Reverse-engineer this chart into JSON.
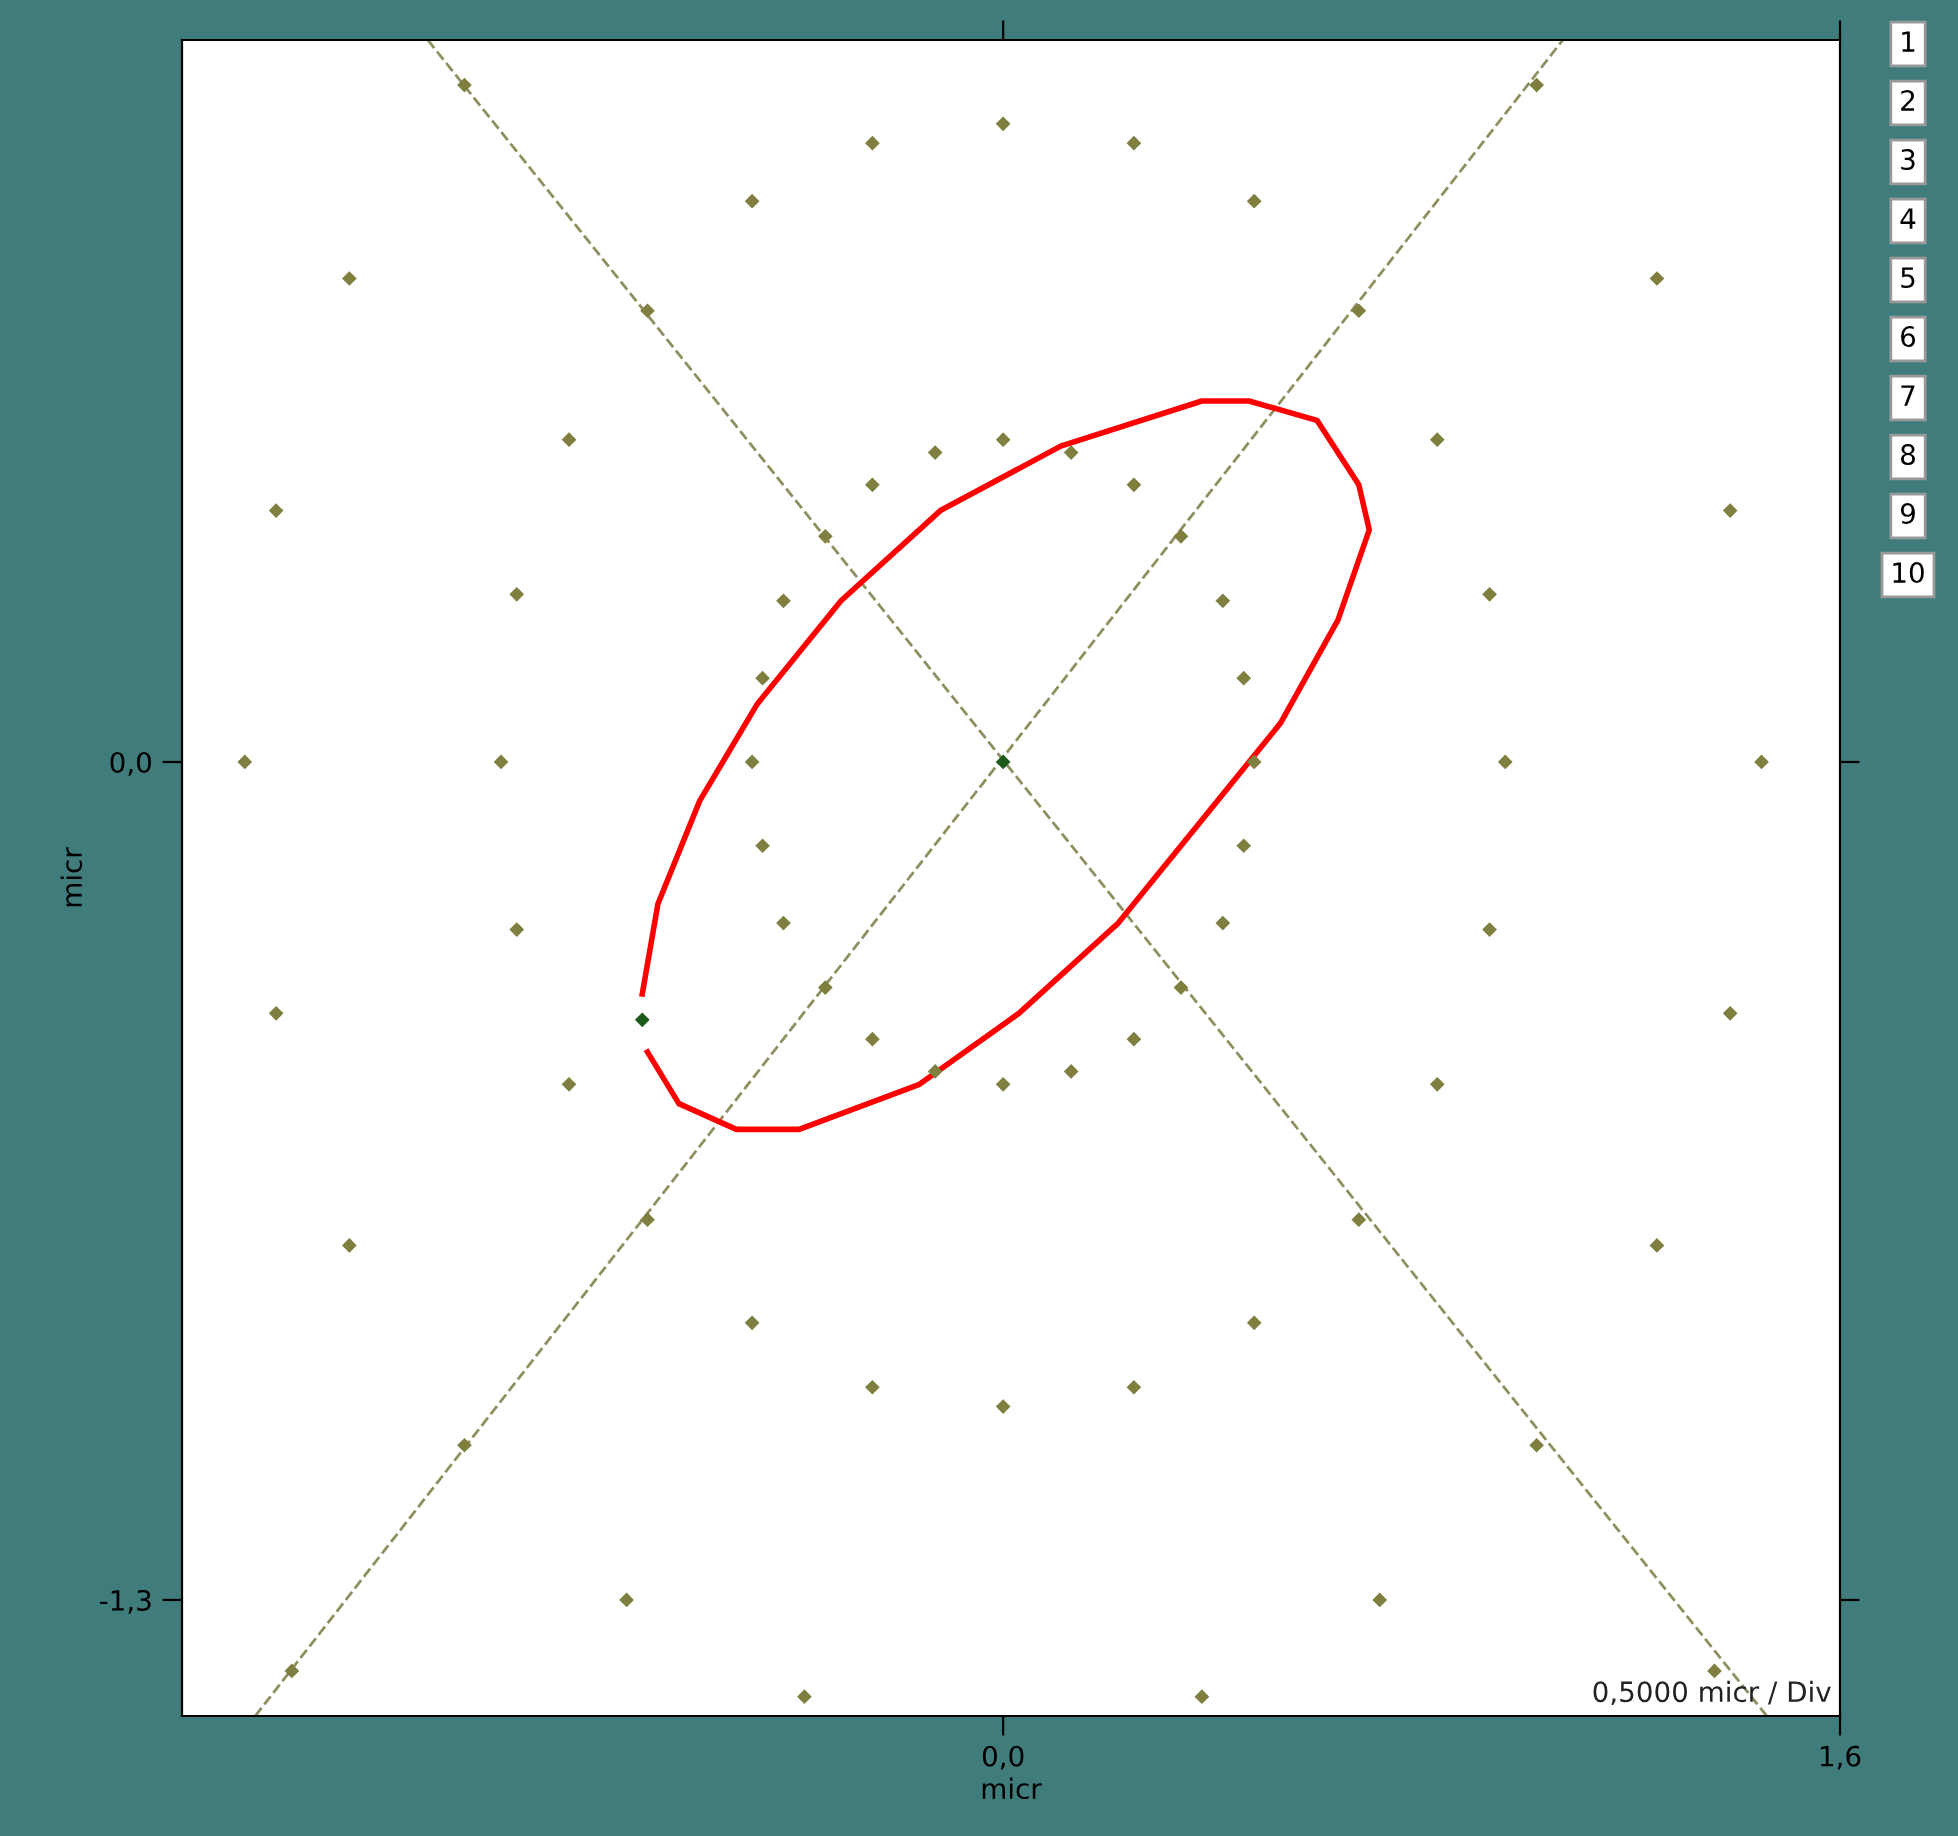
{
  "chart_data": {
    "type": "scatter",
    "xlabel": "micr",
    "ylabel": "micr",
    "xlim": [
      -1.57,
      1.6
    ],
    "ylim": [
      -1.48,
      1.12
    ],
    "xticks": [
      {
        "value": 0,
        "label": "0,0"
      },
      {
        "value": 1.6,
        "label": "1,6"
      }
    ],
    "yticks": [
      {
        "value": 0,
        "label": "0,0"
      },
      {
        "value": -1.3,
        "label": "-1,3"
      }
    ],
    "grid": false,
    "legend": false,
    "annotations": [
      "0,5000 micr / Div",
      "1",
      "2",
      "3",
      "4",
      "5",
      "6",
      "7",
      "8",
      "9",
      "10"
    ],
    "series": [
      {
        "color": "#7f7f3f",
        "marker": "diamond",
        "x": [
          -1.03,
          -0.25,
          0,
          0.25,
          1.02,
          -0.48,
          0.48,
          -1.25,
          -0.68,
          0.68,
          1.25,
          -0.83,
          -0.25,
          -0.13,
          0,
          0.13,
          0.25,
          0.83,
          -1.39,
          -0.34,
          0.34,
          1.39,
          -0.93,
          -0.42,
          0.42,
          0.93,
          -0.46,
          0.46,
          -1.45,
          -0.96,
          -0.48,
          0.48,
          0.96,
          1.45,
          -0.46,
          0.46,
          -0.93,
          -0.42,
          0.42,
          0.93,
          -1.39,
          -0.34,
          0.34,
          1.39,
          -0.83,
          -0.25,
          -0.13,
          0,
          0.13,
          0.25,
          0.83,
          -1.25,
          -0.68,
          0.68,
          1.25,
          -0.48,
          0.48,
          -1.03,
          -0.25,
          0,
          0.25,
          1.02,
          -0.72,
          0.72,
          -1.36,
          -0.38,
          0.38,
          1.36
        ],
        "values": [
          1.05,
          0.96,
          0.99,
          0.96,
          1.05,
          0.87,
          0.87,
          0.75,
          0.7,
          0.7,
          0.75,
          0.5,
          0.43,
          0.48,
          0.5,
          0.48,
          0.43,
          0.5,
          0.39,
          0.35,
          0.35,
          0.39,
          0.26,
          0.25,
          0.25,
          0.26,
          0.13,
          0.13,
          0,
          0,
          0,
          0,
          0,
          0,
          -0.13,
          -0.13,
          -0.26,
          -0.25,
          -0.25,
          -0.26,
          -0.39,
          -0.35,
          -0.35,
          -0.39,
          -0.5,
          -0.43,
          -0.48,
          -0.5,
          -0.48,
          -0.43,
          -0.5,
          -0.75,
          -0.71,
          -0.71,
          -0.75,
          -0.87,
          -0.87,
          -1.06,
          -0.97,
          -1.0,
          -0.97,
          -1.06,
          -1.3,
          -1.3,
          -1.41,
          -1.45,
          -1.45,
          -1.41
        ]
      },
      {
        "type": "line",
        "color": "#8f8f5f",
        "line_style": "dashed",
        "x": [
          -1.43,
          1.07
        ],
        "values": [
          -1.48,
          1.12
        ]
      },
      {
        "type": "line",
        "color": "#8f8f5f",
        "line_style": "dashed",
        "x": [
          -1.1,
          1.46
        ],
        "values": [
          1.12,
          -1.48
        ]
      },
      {
        "type": "line",
        "color": "#ff0000",
        "line_style": "solid",
        "x": [
          -0.69,
          -0.66,
          -0.58,
          -0.47,
          -0.31,
          -0.12,
          0.11,
          0.38,
          0.47,
          0.6,
          0.68,
          0.7,
          0.64,
          0.53,
          0.38,
          0.22,
          0.03,
          -0.16,
          -0.39,
          -0.51,
          -0.62,
          -0.68
        ],
        "values": [
          -0.36,
          -0.22,
          -0.06,
          0.09,
          0.25,
          0.39,
          0.49,
          0.56,
          0.56,
          0.53,
          0.43,
          0.36,
          0.22,
          0.06,
          -0.09,
          -0.25,
          -0.39,
          -0.5,
          -0.57,
          -0.57,
          -0.53,
          -0.45
        ]
      },
      {
        "color": "#1a5a1a",
        "marker": "diamond",
        "x": [
          0,
          -0.69
        ],
        "values": [
          0,
          -0.4
        ]
      }
    ]
  }
}
